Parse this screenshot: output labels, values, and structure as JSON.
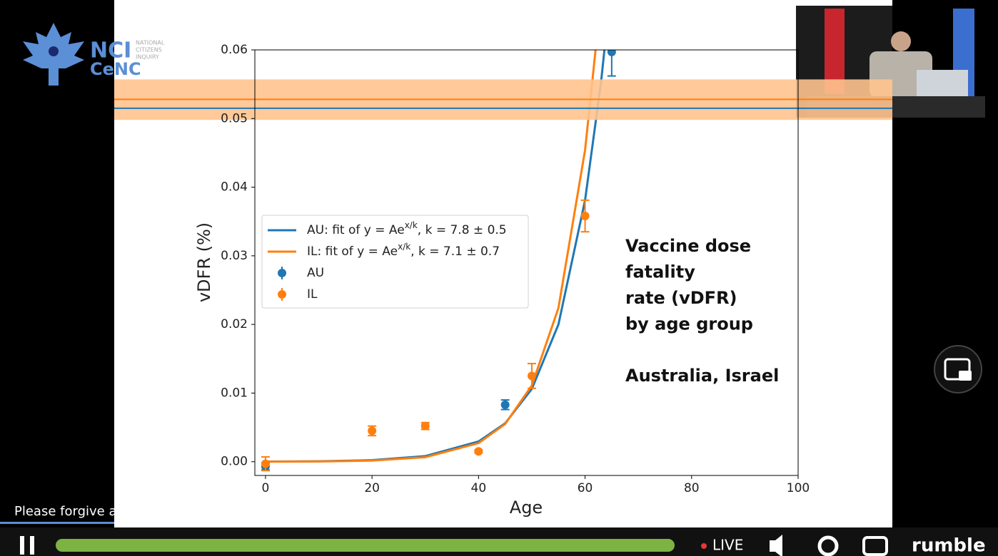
{
  "logo": {
    "nci": "NCI",
    "cenc": "CeNC",
    "lines": [
      "NATIONAL",
      "CITIZENS",
      "INQUIRY"
    ]
  },
  "player": {
    "caption": "Please forgive any delays and bear with us while we translate...",
    "live": "LIVE",
    "brand": "rumble"
  },
  "chart_data": {
    "type": "errorbar",
    "xlabel": "Age",
    "ylabel": "vDFR (%)",
    "xlim": [
      -2,
      100
    ],
    "ylim": [
      -0.002,
      0.06
    ],
    "xticks": [
      0,
      20,
      40,
      60,
      80,
      100
    ],
    "yticks": [
      {
        "value": 0,
        "label": "0.00"
      },
      {
        "value": 0.01,
        "label": "0.01"
      },
      {
        "value": 0.02,
        "label": "0.02"
      },
      {
        "value": 0.03,
        "label": "0.03"
      },
      {
        "value": 0.04,
        "label": "0.04"
      },
      {
        "value": 0.05,
        "label": "0.05"
      },
      {
        "value": 0.06,
        "label": "0.06"
      }
    ],
    "band": {
      "low": 0.0498,
      "high": 0.0557,
      "color": "#ffc38e"
    },
    "reference_lines": [
      {
        "value": 0.0515,
        "color": "#1f77b4"
      },
      {
        "value": 0.0528,
        "color": "#ff7f0e"
      }
    ],
    "series": [
      {
        "kind": "line",
        "name_parts": [
          "AU: fit of ",
          "y = Ae",
          "x/k",
          ", k = 7.8 ± 0.5"
        ],
        "color": "#1f77b4",
        "x": [
          0,
          10,
          20,
          30,
          40,
          45,
          50,
          55,
          60,
          63,
          64
        ],
        "values": [
          1.75e-05,
          6.3e-05,
          0.000227,
          0.00082,
          0.00295,
          0.0056,
          0.0106,
          0.02,
          0.0381,
          0.0553,
          0.0627
        ]
      },
      {
        "kind": "line",
        "name_parts": [
          "IL: fit of ",
          "y = Ae",
          "x/k",
          ", k = 7.1 ± 0.7"
        ],
        "color": "#ff7f0e",
        "x": [
          0,
          10,
          20,
          30,
          40,
          45,
          50,
          55,
          60,
          62
        ],
        "values": [
          9.7e-06,
          3.97e-05,
          0.000162,
          0.00066,
          0.00271,
          0.0055,
          0.0111,
          0.0224,
          0.0454,
          0.0602
        ]
      },
      {
        "kind": "errorbar",
        "name": "AU",
        "color": "#1f77b4",
        "x": [
          0,
          45,
          65
        ],
        "values": [
          -0.0007,
          0.0083,
          0.0597
        ],
        "errors": [
          0.0005,
          0.0007,
          0.0035
        ]
      },
      {
        "kind": "errorbar",
        "name": "IL",
        "color": "#ff7f0e",
        "x": [
          0,
          20,
          30,
          40,
          50,
          60
        ],
        "values": [
          -0.0003,
          0.0045,
          0.0052,
          0.0015,
          0.0125,
          0.0358
        ],
        "errors": [
          0.001,
          0.0007,
          0.0005,
          0.0002,
          0.0018,
          0.0023
        ]
      }
    ],
    "annotation_lines": [
      "Vaccine dose",
      "fatality",
      "rate (vDFR)",
      "by age group"
    ],
    "annotation_note": "Australia, Israel"
  }
}
